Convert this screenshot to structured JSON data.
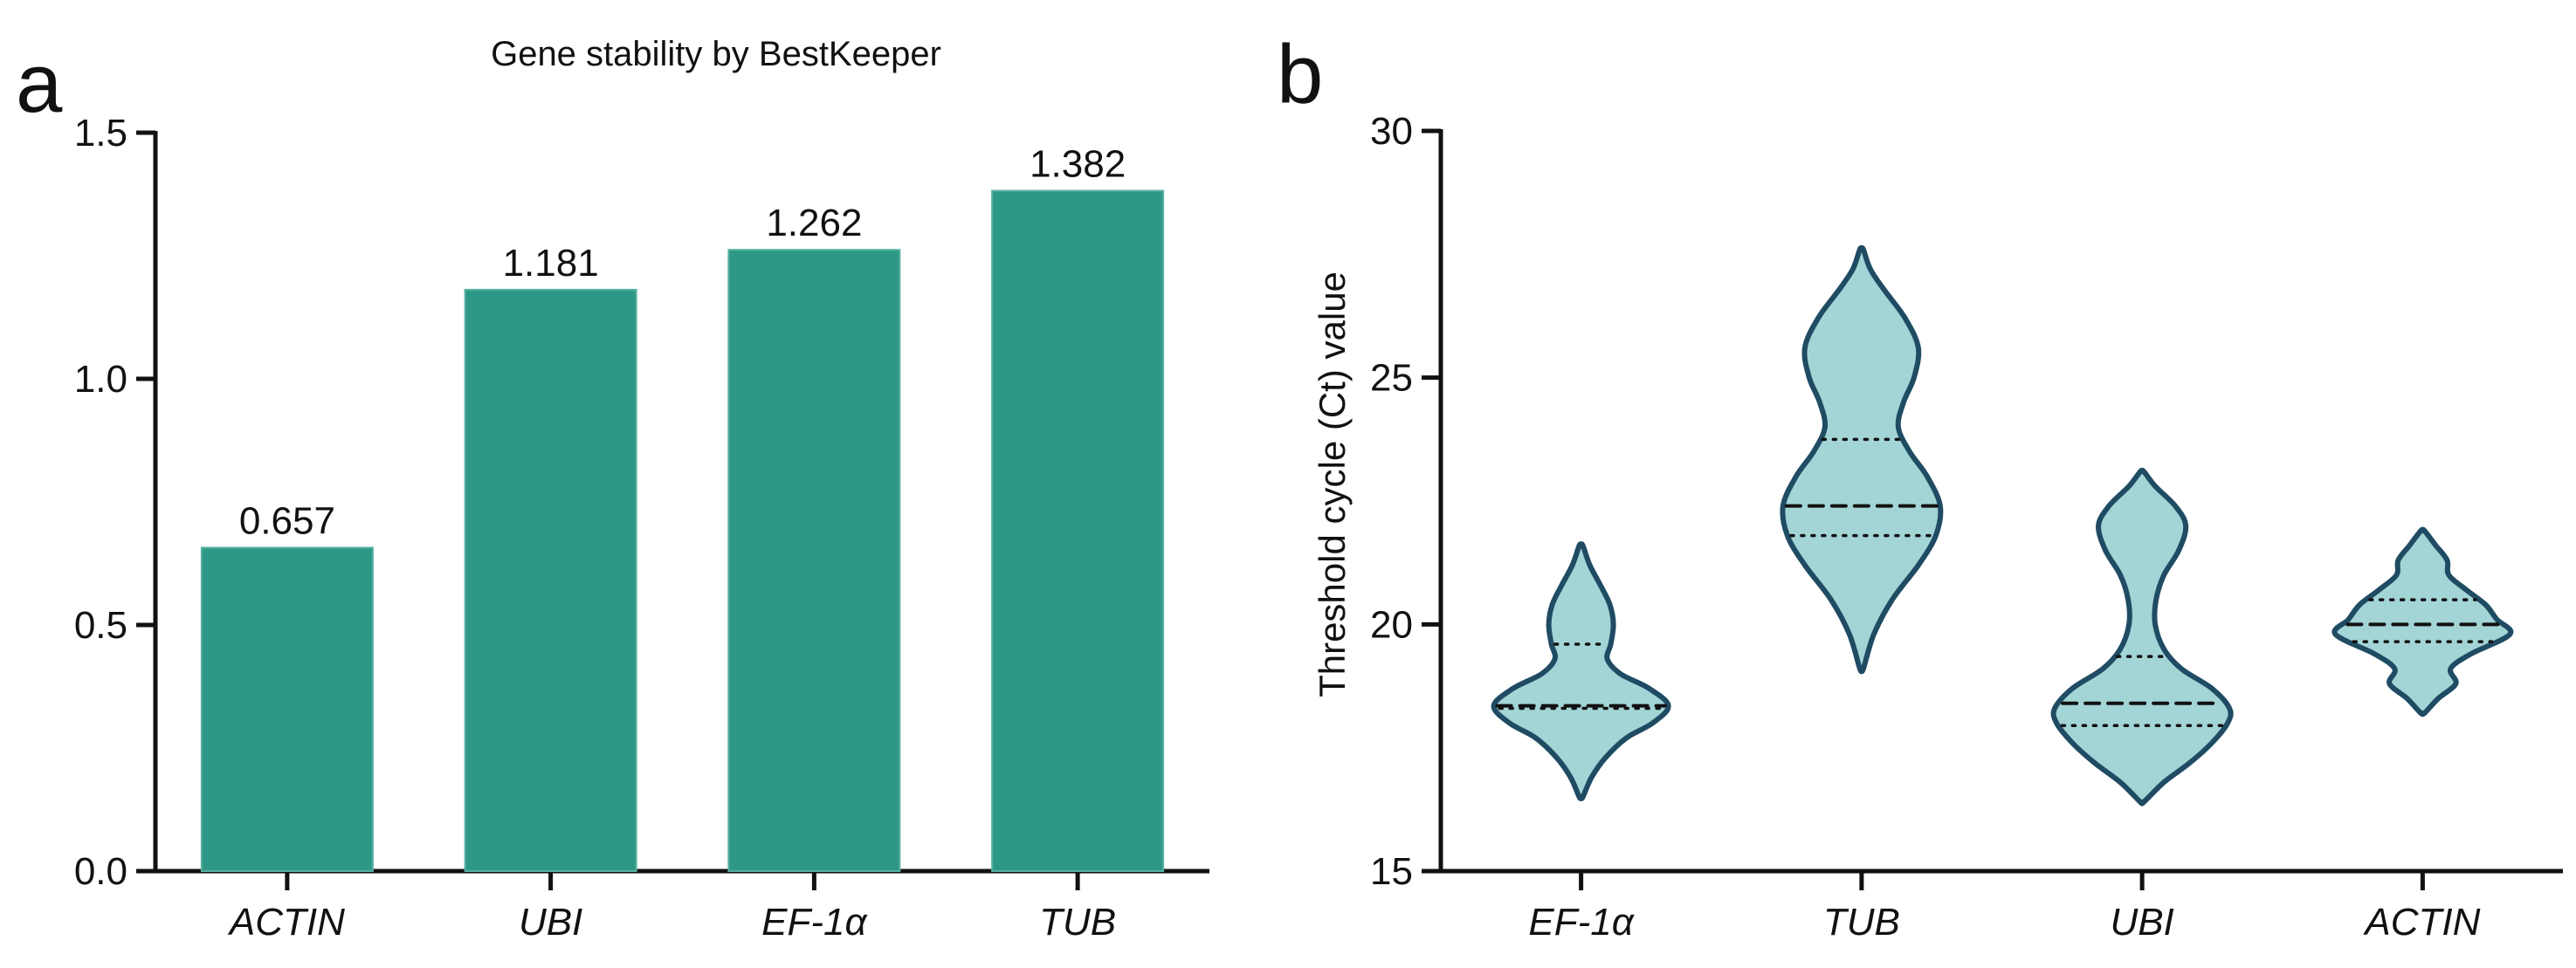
{
  "panels": {
    "a": "a",
    "b": "b"
  },
  "chart_data": [
    {
      "type": "bar",
      "title": "Gene stability by BestKeeper",
      "xlabel": "",
      "ylabel": "",
      "categories": [
        "ACTIN",
        "UBI",
        "EF-1α",
        "TUB"
      ],
      "values": [
        0.657,
        1.181,
        1.262,
        1.382
      ],
      "data_labels": [
        "0.657",
        "1.181",
        "1.262",
        "1.382"
      ],
      "ylim": [
        0,
        1.5
      ],
      "yticks": [
        "0.0",
        "0.5",
        "1.0",
        "1.5"
      ],
      "ytick_values": [
        0,
        0.5,
        1.0,
        1.5
      ],
      "bar_color": "#2e9886",
      "grid": false
    },
    {
      "type": "violin",
      "title": "",
      "xlabel": "",
      "ylabel": "Threshold cycle (Ct) value",
      "categories": [
        "EF-1α",
        "TUB",
        "UBI",
        "ACTIN"
      ],
      "ylim": [
        15,
        30
      ],
      "yticks": [
        "15",
        "20",
        "25",
        "30"
      ],
      "ytick_values": [
        15,
        20,
        25,
        30
      ],
      "fill_color": "#a3d4d6",
      "stroke_color": "#1f4b63",
      "grid": false,
      "series": [
        {
          "name": "EF-1α",
          "min": 16.5,
          "max": 21.6,
          "median": 18.35,
          "q1": 18.3,
          "q3": 19.6,
          "profile": [
            [
              16.5,
              0.02
            ],
            [
              16.9,
              0.12
            ],
            [
              17.3,
              0.28
            ],
            [
              17.7,
              0.52
            ],
            [
              18.0,
              0.82
            ],
            [
              18.35,
              1.0
            ],
            [
              18.7,
              0.78
            ],
            [
              19.0,
              0.45
            ],
            [
              19.3,
              0.3
            ],
            [
              19.6,
              0.34
            ],
            [
              20.0,
              0.37
            ],
            [
              20.4,
              0.33
            ],
            [
              20.8,
              0.22
            ],
            [
              21.2,
              0.1
            ],
            [
              21.6,
              0.02
            ]
          ]
        },
        {
          "name": "TUB",
          "min": 19.1,
          "max": 27.6,
          "median": 22.4,
          "q1": 21.8,
          "q3": 23.75,
          "profile": [
            [
              19.1,
              0.02
            ],
            [
              19.8,
              0.14
            ],
            [
              20.5,
              0.35
            ],
            [
              21.2,
              0.65
            ],
            [
              21.8,
              0.85
            ],
            [
              22.4,
              0.9
            ],
            [
              23.0,
              0.75
            ],
            [
              23.5,
              0.55
            ],
            [
              24.0,
              0.42
            ],
            [
              24.5,
              0.48
            ],
            [
              25.0,
              0.6
            ],
            [
              25.6,
              0.65
            ],
            [
              26.2,
              0.5
            ],
            [
              26.8,
              0.25
            ],
            [
              27.2,
              0.1
            ],
            [
              27.6,
              0.02
            ]
          ]
        },
        {
          "name": "UBI",
          "min": 16.4,
          "max": 23.1,
          "median": 18.4,
          "q1": 17.95,
          "q3": 19.35,
          "profile": [
            [
              16.4,
              0.02
            ],
            [
              16.8,
              0.25
            ],
            [
              17.2,
              0.55
            ],
            [
              17.6,
              0.8
            ],
            [
              18.0,
              0.98
            ],
            [
              18.3,
              1.0
            ],
            [
              18.7,
              0.8
            ],
            [
              19.1,
              0.45
            ],
            [
              19.5,
              0.25
            ],
            [
              20.0,
              0.15
            ],
            [
              20.5,
              0.16
            ],
            [
              21.0,
              0.25
            ],
            [
              21.5,
              0.42
            ],
            [
              22.0,
              0.5
            ],
            [
              22.4,
              0.38
            ],
            [
              22.8,
              0.15
            ],
            [
              23.1,
              0.02
            ]
          ]
        },
        {
          "name": "ACTIN",
          "min": 18.2,
          "max": 21.9,
          "median": 20.0,
          "q1": 19.65,
          "q3": 20.5,
          "profile": [
            [
              18.2,
              0.02
            ],
            [
              18.5,
              0.18
            ],
            [
              18.8,
              0.38
            ],
            [
              19.1,
              0.32
            ],
            [
              19.4,
              0.55
            ],
            [
              19.8,
              1.0
            ],
            [
              20.1,
              0.85
            ],
            [
              20.4,
              0.72
            ],
            [
              20.7,
              0.5
            ],
            [
              21.0,
              0.3
            ],
            [
              21.3,
              0.28
            ],
            [
              21.6,
              0.15
            ],
            [
              21.9,
              0.02
            ]
          ]
        }
      ]
    }
  ]
}
